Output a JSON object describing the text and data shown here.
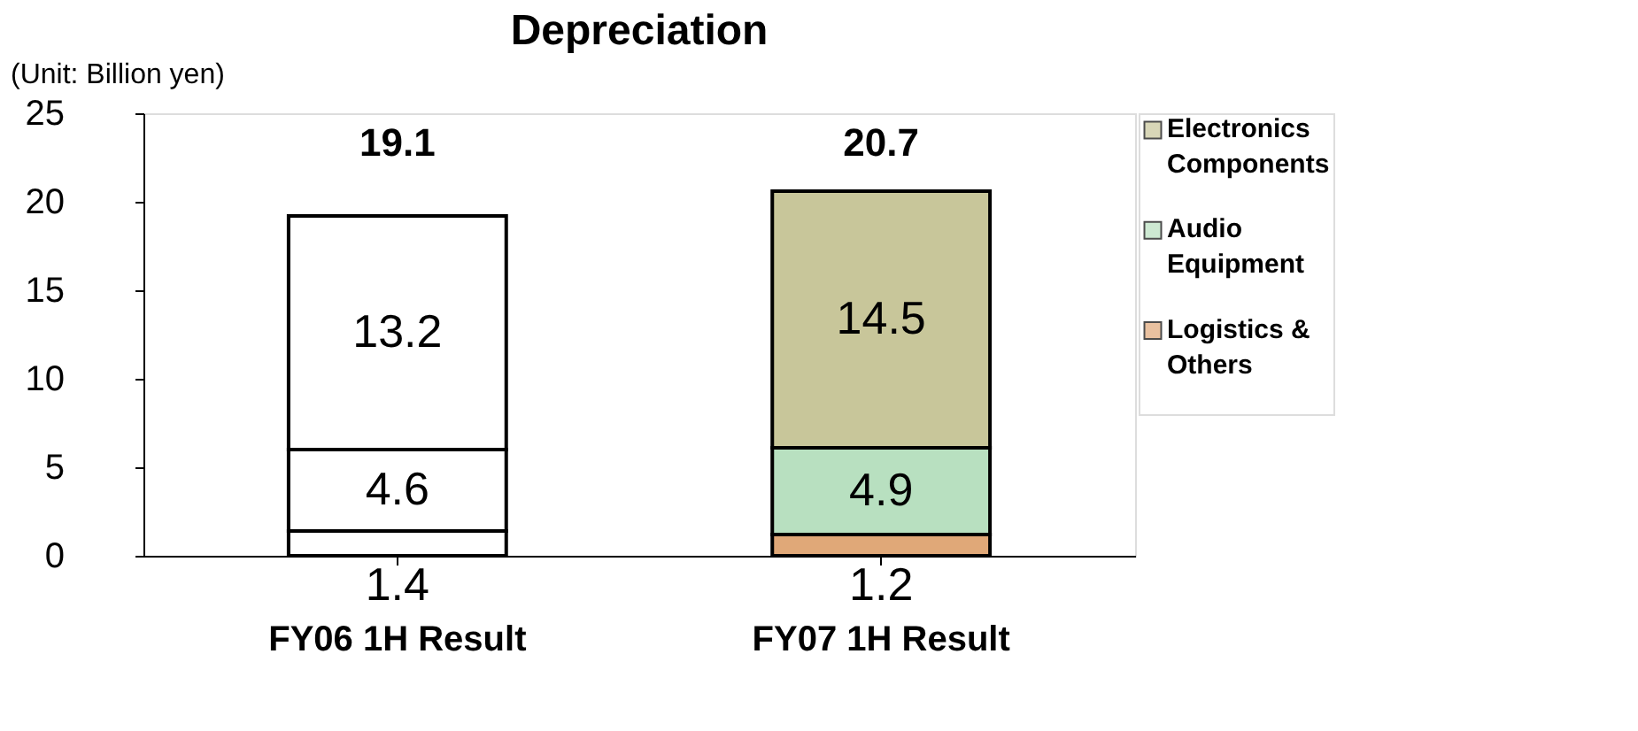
{
  "chart_data": {
    "type": "bar",
    "title": "Depreciation",
    "annotations": [
      "(Unit: Billion yen)"
    ],
    "categories": [
      "FY06 1H Result",
      "FY07 1H Result"
    ],
    "stacked": true,
    "data_labels": true,
    "totals": [
      "19.1",
      "20.7"
    ],
    "legend": "right",
    "grid": false,
    "ylim": [
      0,
      25
    ],
    "yticks": [
      0,
      5,
      10,
      15,
      20,
      25
    ],
    "series": [
      {
        "name": "Logistics & Others",
        "color": "#e0a878",
        "colors": [
          "#ffffff",
          "#e0a878"
        ],
        "values": [
          1.4,
          1.2
        ]
      },
      {
        "name": "Audio Equipment",
        "color": "#b8e0c0",
        "colors": [
          "#ffffff",
          "#b8e0c0"
        ],
        "values": [
          4.6,
          4.9
        ]
      },
      {
        "name": "Electronics Components",
        "color": "#c8c69a",
        "colors": [
          "#ffffff",
          "#c8c69a"
        ],
        "values": [
          13.2,
          14.5
        ]
      }
    ]
  }
}
